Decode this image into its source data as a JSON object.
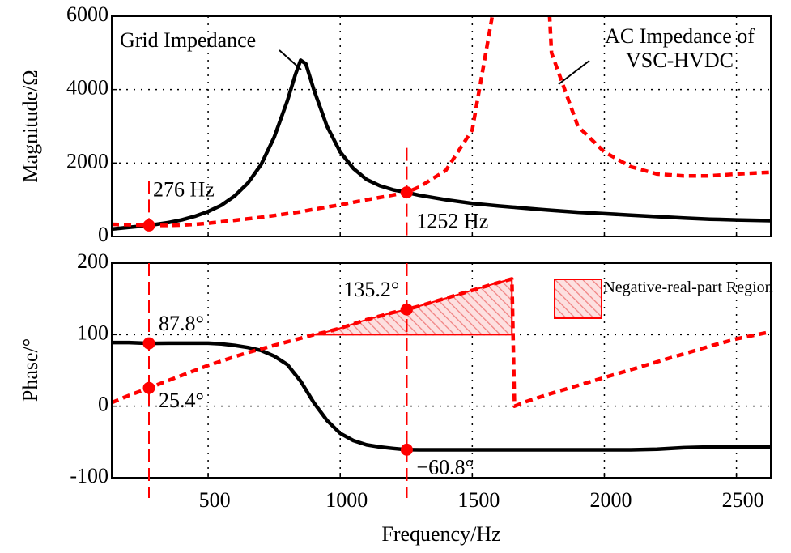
{
  "chart_data": [
    {
      "type": "line",
      "ylabel": "Magnitude/Ω",
      "xlim": [
        135,
        2630
      ],
      "ylim": [
        0,
        6000
      ],
      "yticks": [
        0,
        2000,
        4000,
        6000
      ],
      "grid": true,
      "x": [
        135,
        200,
        276,
        350,
        400,
        450,
        500,
        550,
        600,
        650,
        700,
        750,
        800,
        830,
        850,
        870,
        900,
        950,
        1000,
        1050,
        1100,
        1150,
        1200,
        1252,
        1300,
        1400,
        1500,
        1600,
        1650,
        1700,
        1750,
        1800,
        1900,
        2000,
        2100,
        2200,
        2300,
        2400,
        2500,
        2630
      ],
      "series": [
        {
          "name": "Grid Impedance",
          "color": "#000000",
          "dash": false,
          "values": [
            200,
            250,
            300,
            380,
            450,
            550,
            680,
            850,
            1100,
            1450,
            1950,
            2700,
            3700,
            4400,
            4800,
            4700,
            4000,
            3000,
            2300,
            1850,
            1550,
            1380,
            1270,
            1200,
            1120,
            1000,
            900,
            830,
            800,
            770,
            740,
            710,
            660,
            620,
            580,
            540,
            500,
            470,
            450,
            430
          ]
        },
        {
          "name": "AC Impedance of VSC-HVDC",
          "color": "#ff0000",
          "dash": true,
          "values": [
            330,
            320,
            300,
            300,
            310,
            330,
            360,
            400,
            440,
            480,
            520,
            570,
            620,
            650,
            670,
            700,
            740,
            800,
            860,
            930,
            1000,
            1060,
            1130,
            1200,
            1350,
            1800,
            2900,
            7000,
            12000,
            null,
            12000,
            5000,
            3000,
            2300,
            1900,
            1700,
            1650,
            1650,
            1700,
            1750
          ]
        }
      ],
      "markers": [
        {
          "x": 276,
          "y": 300,
          "label": "276 Hz"
        },
        {
          "x": 1252,
          "y": 1200,
          "label": "1252 Hz"
        }
      ]
    },
    {
      "type": "line",
      "ylabel": "Phase/°",
      "xlabel": "Frequency/Hz",
      "xlim": [
        135,
        2630
      ],
      "xticks": [
        500,
        1000,
        1500,
        2000,
        2500
      ],
      "ylim": [
        -100,
        200
      ],
      "yticks": [
        -100,
        0,
        100,
        200
      ],
      "grid": true,
      "x": [
        135,
        200,
        276,
        350,
        400,
        450,
        500,
        550,
        600,
        650,
        700,
        750,
        800,
        850,
        900,
        950,
        1000,
        1050,
        1100,
        1150,
        1200,
        1252,
        1300,
        1400,
        1500,
        1600,
        1650,
        1660,
        1700,
        1800,
        1900,
        2000,
        2100,
        2200,
        2300,
        2400,
        2500,
        2630
      ],
      "series": [
        {
          "color": "#000000",
          "dash": false,
          "values": [
            89,
            89,
            87.8,
            88,
            88,
            88,
            88,
            87,
            85,
            82,
            78,
            70,
            58,
            35,
            5,
            -20,
            -38,
            -48,
            -54,
            -57,
            -59,
            -60.8,
            -61,
            -61,
            -61,
            -61,
            -61,
            -61,
            -61,
            -61,
            -61,
            -61,
            -61,
            -60,
            -58,
            -57,
            -57,
            -57
          ]
        },
        {
          "color": "#ff0000",
          "dash": true,
          "values": [
            5,
            15,
            25.4,
            36,
            43,
            50,
            57,
            63,
            69,
            75,
            80,
            85,
            90,
            95,
            100,
            104,
            109,
            115,
            121,
            126,
            131,
            135.2,
            140,
            151,
            162,
            173,
            178,
            0,
            6,
            18,
            29,
            40,
            51,
            62,
            73,
            84,
            94,
            104
          ]
        }
      ],
      "region": {
        "label": "Negative-real-part Region",
        "color": "#ff0000",
        "y": 100,
        "x": [
          900,
          1650
        ]
      },
      "markers": [
        {
          "x": 276,
          "y": 87.8,
          "label": "87.8°"
        },
        {
          "x": 276,
          "y": 25.4,
          "label": "25.4°"
        },
        {
          "x": 1252,
          "y": 135.2,
          "label": "135.2°"
        },
        {
          "x": 1252,
          "y": -60.8,
          "label": "−60.8°"
        }
      ]
    }
  ]
}
